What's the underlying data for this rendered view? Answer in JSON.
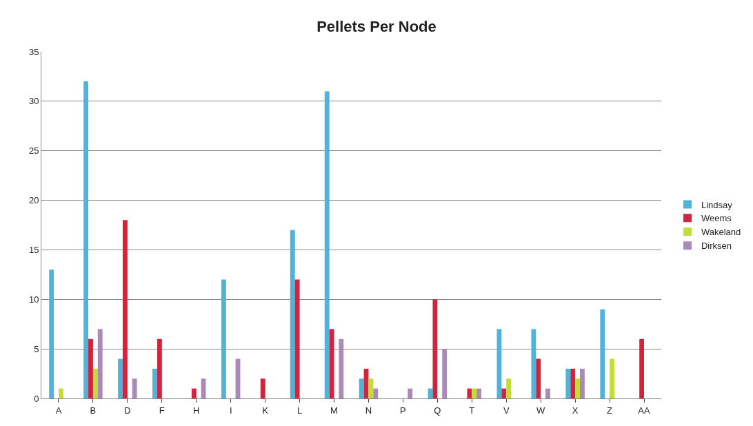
{
  "chart_data": {
    "type": "bar",
    "title": "Pellets Per Node",
    "categories": [
      "A",
      "B",
      "D",
      "F",
      "H",
      "I",
      "K",
      "L",
      "M",
      "N",
      "P",
      "Q",
      "T",
      "V",
      "W",
      "X",
      "Z",
      "AA"
    ],
    "series": [
      {
        "name": "Lindsay",
        "color": "#4fb3dc",
        "values": [
          13,
          32,
          4,
          3,
          0,
          12,
          0,
          17,
          31,
          2,
          0,
          1,
          0,
          7,
          7,
          3,
          9,
          0
        ]
      },
      {
        "name": "Weems",
        "color": "#d1243d",
        "values": [
          0,
          6,
          18,
          6,
          1,
          0,
          2,
          12,
          7,
          3,
          0,
          10,
          1,
          1,
          4,
          3,
          0,
          6
        ]
      },
      {
        "name": "Wakeland",
        "color": "#c3dc3a",
        "values": [
          1,
          3,
          0,
          0,
          0,
          0,
          0,
          0,
          0,
          2,
          0,
          0,
          1,
          2,
          0,
          2,
          4,
          0
        ]
      },
      {
        "name": "Dirksen",
        "color": "#a98ab8",
        "values": [
          0,
          7,
          2,
          0,
          2,
          4,
          0,
          0,
          6,
          1,
          1,
          5,
          1,
          0,
          1,
          3,
          0,
          0
        ]
      }
    ],
    "ylim": [
      0,
      35
    ],
    "yticks": [
      0,
      5,
      10,
      15,
      20,
      25,
      30,
      35
    ],
    "grid": "y",
    "legend": "right"
  }
}
